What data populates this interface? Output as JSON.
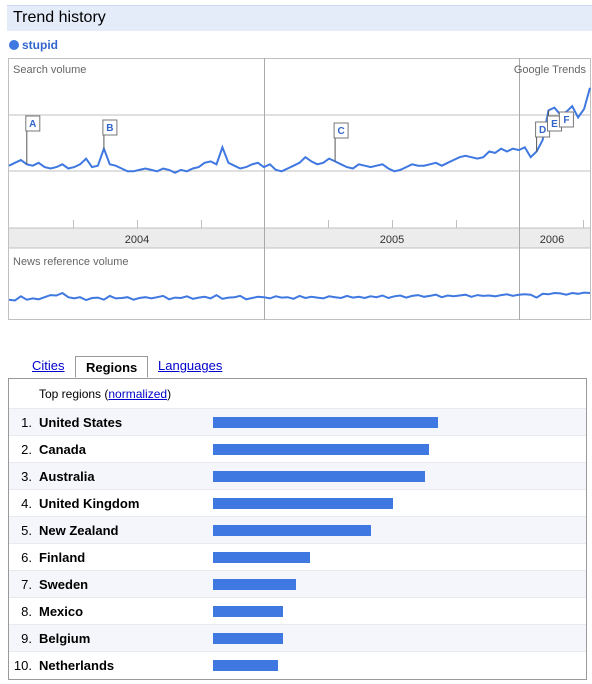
{
  "title": "Trend history",
  "legend": {
    "term": "stupid",
    "color": "#3f78e0"
  },
  "chart_labels": {
    "search_volume": "Search volume",
    "brand": "Google Trends",
    "news_volume": "News reference volume",
    "years": [
      "2004",
      "2005",
      "2006"
    ],
    "annotations": [
      "A",
      "B",
      "C",
      "D",
      "E",
      "F"
    ]
  },
  "chart_data": {
    "type": "line",
    "series": [
      {
        "name": "stupid",
        "values": [
          4.4,
          4.6,
          4.8,
          4.5,
          4.4,
          4.6,
          4.3,
          4.2,
          4.3,
          4.5,
          4.2,
          4.3,
          4.5,
          4.9,
          4.3,
          4.4,
          5.6,
          4.5,
          4.4,
          4.2,
          4.0,
          4.0,
          4.1,
          4.2,
          4.1,
          4.0,
          4.2,
          4.1,
          3.9,
          4.1,
          4.0,
          4.2,
          4.3,
          4.6,
          4.7,
          4.5,
          5.7,
          4.6,
          4.4,
          4.2,
          4.3,
          4.5,
          4.6,
          4.3,
          4.5,
          4.1,
          4.0,
          4.2,
          4.4,
          4.6,
          5.0,
          4.7,
          4.5,
          4.6,
          4.9,
          4.7,
          4.5,
          4.3,
          4.2,
          4.5,
          4.4,
          4.3,
          4.4,
          4.5,
          4.2,
          4.0,
          4.1,
          4.3,
          4.5,
          4.4,
          4.4,
          4.5,
          4.6,
          4.4,
          4.6,
          4.8,
          5.0,
          5.1,
          5.0,
          4.9,
          5.0,
          5.4,
          5.3,
          5.6,
          5.4,
          5.6,
          5.5,
          5.7,
          5.0,
          5.4,
          6.2,
          8.3,
          8.5,
          8.0,
          8.2,
          8.6,
          7.8,
          8.4,
          9.9
        ]
      },
      {
        "name": "News reference volume",
        "values": [
          2.0,
          1.8,
          2.8,
          2.0,
          2.3,
          2.1,
          2.6,
          3.1,
          3.0,
          3.6,
          2.6,
          2.3,
          2.6,
          1.9,
          2.4,
          2.5,
          2.0,
          2.9,
          2.3,
          2.4,
          2.6,
          2.0,
          2.4,
          2.6,
          2.3,
          2.6,
          2.9,
          2.1,
          2.5,
          2.4,
          2.8,
          2.2,
          2.5,
          2.7,
          2.3,
          3.1,
          2.2,
          2.5,
          2.6,
          2.9,
          2.1,
          2.4,
          2.7,
          2.6,
          2.3,
          2.8,
          2.5,
          2.6,
          2.2,
          2.9,
          2.4,
          2.7,
          2.5,
          2.3,
          2.8,
          2.6,
          2.4,
          2.9,
          2.5,
          2.7,
          2.4,
          2.8,
          2.6,
          3.0,
          2.4,
          2.8,
          3.0,
          2.5,
          2.9,
          3.1,
          2.7,
          2.9,
          3.2,
          2.6,
          3.0,
          2.8,
          3.0,
          3.2,
          2.7,
          3.1,
          2.9,
          3.0,
          2.8,
          3.1,
          3.3,
          2.9,
          3.2,
          3.3,
          3.2,
          2.5,
          3.4,
          3.3,
          3.6,
          3.5,
          3.2,
          3.6,
          3.4,
          3.7,
          3.6
        ]
      }
    ],
    "x_range": [
      "2003-12",
      "2006-03"
    ],
    "ylim": [
      0,
      12
    ],
    "grid": true
  },
  "tabs": [
    {
      "label": "Cities",
      "active": false
    },
    {
      "label": "Regions",
      "active": true
    },
    {
      "label": "Languages",
      "active": false
    }
  ],
  "regions": {
    "header_prefix": "Top regions (",
    "header_link": "normalized",
    "header_suffix": ")",
    "rows": [
      {
        "rank": "1.",
        "name": "United States",
        "value": 1.0
      },
      {
        "rank": "2.",
        "name": "Canada",
        "value": 0.96
      },
      {
        "rank": "3.",
        "name": "Australia",
        "value": 0.94
      },
      {
        "rank": "4.",
        "name": "United Kingdom",
        "value": 0.8
      },
      {
        "rank": "5.",
        "name": "New Zealand",
        "value": 0.7
      },
      {
        "rank": "6.",
        "name": "Finland",
        "value": 0.43
      },
      {
        "rank": "7.",
        "name": "Sweden",
        "value": 0.37
      },
      {
        "rank": "8.",
        "name": "Mexico",
        "value": 0.31
      },
      {
        "rank": "9.",
        "name": "Belgium",
        "value": 0.31
      },
      {
        "rank": "10.",
        "name": "Netherlands",
        "value": 0.29
      }
    ]
  }
}
